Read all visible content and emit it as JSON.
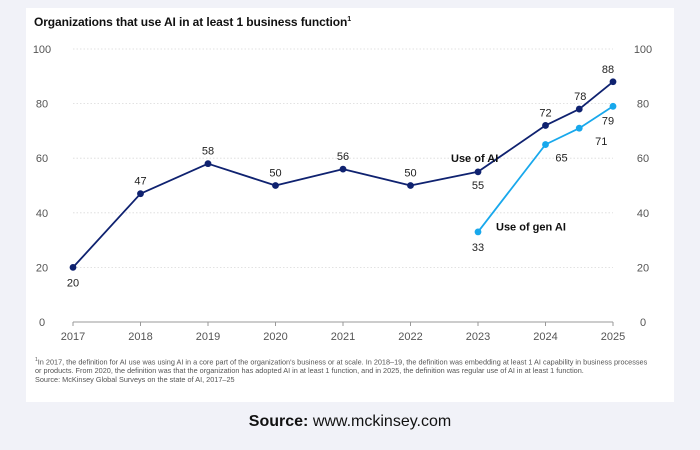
{
  "title": "Organizations that use AI in at least 1 business function",
  "title_footnote_marker": "1",
  "footnote": {
    "marker": "1",
    "text": "In 2017, the definition for AI use was using AI in a core part of the organization's business or at scale. In 2018–19, the definition was embedding at least 1 AI capability in business processes or products. From 2020, the definition was that the organization has adopted AI in at least 1 function, and in 2025, the definition was regular use of AI in at least 1 function.",
    "source": "Source: McKinsey Global Surveys on the state of AI, 2017–25"
  },
  "page_source": {
    "label": "Source:",
    "value": "www.mckinsey.com"
  },
  "chart_data": {
    "type": "line",
    "ylim": [
      0,
      100
    ],
    "yticks": [
      0,
      20,
      40,
      60,
      80,
      100
    ],
    "xticks": [
      "2017",
      "2018",
      "2019",
      "2020",
      "2021",
      "2022",
      "2023",
      "2024",
      "2025"
    ],
    "grid": true,
    "series": [
      {
        "name": "Use of AI",
        "color": "#0f2270",
        "points": [
          {
            "x": 2017,
            "y": 20
          },
          {
            "x": 2018,
            "y": 47
          },
          {
            "x": 2019,
            "y": 58
          },
          {
            "x": 2020,
            "y": 50
          },
          {
            "x": 2021,
            "y": 56
          },
          {
            "x": 2022,
            "y": 50
          },
          {
            "x": 2023,
            "y": 55
          },
          {
            "x": 2024,
            "y": 72
          },
          {
            "x": 2024.5,
            "y": 78
          },
          {
            "x": 2025,
            "y": 88
          }
        ]
      },
      {
        "name": "Use of gen AI",
        "color": "#18a8ec",
        "points": [
          {
            "x": 2023,
            "y": 33
          },
          {
            "x": 2024,
            "y": 65
          },
          {
            "x": 2024.5,
            "y": 71
          },
          {
            "x": 2025,
            "y": 79
          }
        ]
      }
    ]
  }
}
